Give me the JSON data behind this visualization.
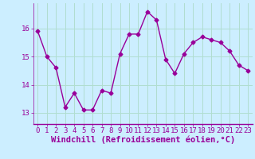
{
  "x": [
    0,
    1,
    2,
    3,
    4,
    5,
    6,
    7,
    8,
    9,
    10,
    11,
    12,
    13,
    14,
    15,
    16,
    17,
    18,
    19,
    20,
    21,
    22,
    23
  ],
  "y": [
    15.9,
    15.0,
    14.6,
    13.2,
    13.7,
    13.1,
    13.1,
    13.8,
    13.7,
    15.1,
    15.8,
    15.8,
    16.6,
    16.3,
    14.9,
    14.4,
    15.1,
    15.5,
    15.7,
    15.6,
    15.5,
    15.2,
    14.7,
    14.5
  ],
  "line_color": "#990099",
  "marker": "D",
  "markersize": 2.5,
  "linewidth": 1.0,
  "xlabel": "Windchill (Refroidissement éolien,°C)",
  "xlabel_fontsize": 7.5,
  "xlabel_color": "#990099",
  "bg_color": "#cceeff",
  "grid_color": "#aaddcc",
  "tick_label_color": "#990099",
  "tick_fontsize": 6.5,
  "ylim": [
    12.6,
    16.9
  ],
  "yticks": [
    13,
    14,
    15,
    16
  ],
  "xlim": [
    -0.5,
    23.5
  ],
  "xticks": [
    0,
    1,
    2,
    3,
    4,
    5,
    6,
    7,
    8,
    9,
    10,
    11,
    12,
    13,
    14,
    15,
    16,
    17,
    18,
    19,
    20,
    21,
    22,
    23
  ],
  "spine_color": "#990099",
  "spine_bottom_color": "#990099"
}
